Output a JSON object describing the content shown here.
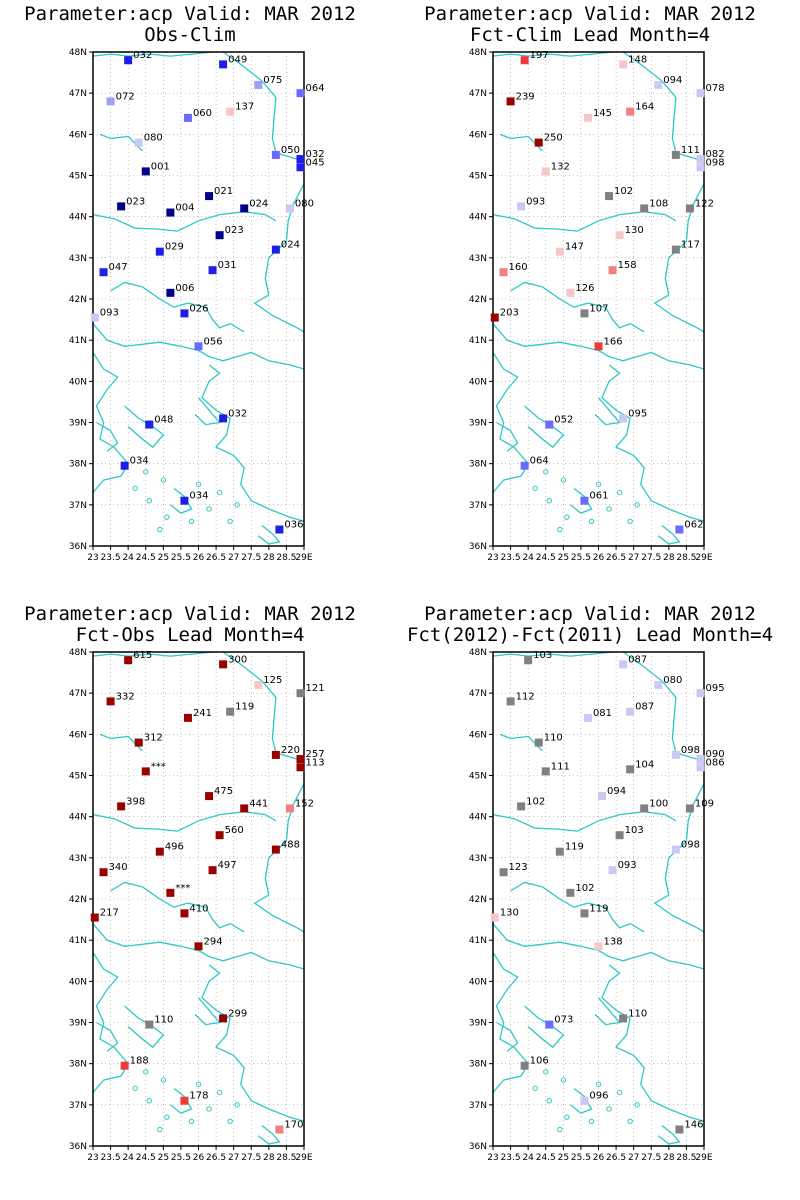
{
  "lon_ticks": [
    "23",
    "23.5",
    "24",
    "24.5",
    "25",
    "25.5",
    "26",
    "26.5",
    "27",
    "27.5",
    "28",
    "28.5",
    "29E"
  ],
  "lat_ticks": [
    "36N",
    "37N",
    "38N",
    "39N",
    "40N",
    "41N",
    "42N",
    "43N",
    "44N",
    "45N",
    "46N",
    "47N",
    "48N"
  ],
  "colors": {
    "coast": "#2fc7c7",
    "grid": "#9a9a9a",
    "neutral": "#808080",
    "blue_dark": "#00008c",
    "blue": "#1e1ee6",
    "blue_mid": "#6a6aff",
    "blue_light": "#9e9ef6",
    "blue_pale": "#c9c9f3",
    "red_dark": "#990000",
    "red": "#ee3b3b",
    "red_light": "#f08080",
    "red_pale": "#f7c6c6"
  },
  "chart_data": [
    {
      "type": "scatter",
      "title": "Parameter:acp Valid: MAR 2012",
      "subtitle": "Obs-Clim",
      "xlim": [
        23,
        29
      ],
      "ylim": [
        36,
        48
      ],
      "points": [
        {
          "lon": 24.0,
          "lat": 47.8,
          "label": "032",
          "color": "blue"
        },
        {
          "lon": 26.7,
          "lat": 47.7,
          "label": "049",
          "color": "blue"
        },
        {
          "lon": 27.7,
          "lat": 47.2,
          "label": "075",
          "color": "blue_light"
        },
        {
          "lon": 28.9,
          "lat": 47.0,
          "label": "064",
          "color": "blue_mid"
        },
        {
          "lon": 23.5,
          "lat": 46.8,
          "label": "072",
          "color": "blue_light"
        },
        {
          "lon": 26.9,
          "lat": 46.55,
          "label": "137",
          "color": "red_pale"
        },
        {
          "lon": 25.7,
          "lat": 46.4,
          "label": "060",
          "color": "blue_mid"
        },
        {
          "lon": 24.3,
          "lat": 45.8,
          "label": "080",
          "color": "blue_pale"
        },
        {
          "lon": 28.2,
          "lat": 45.5,
          "label": "050",
          "color": "blue_mid"
        },
        {
          "lon": 28.9,
          "lat": 45.4,
          "label": "032",
          "color": "blue"
        },
        {
          "lon": 28.9,
          "lat": 45.2,
          "label": "045",
          "color": "blue"
        },
        {
          "lon": 24.5,
          "lat": 45.1,
          "label": "001",
          "color": "blue_dark"
        },
        {
          "lon": 26.3,
          "lat": 44.5,
          "label": "021",
          "color": "blue_dark"
        },
        {
          "lon": 23.8,
          "lat": 44.25,
          "label": "023",
          "color": "blue_dark"
        },
        {
          "lon": 27.3,
          "lat": 44.2,
          "label": "024",
          "color": "blue_dark"
        },
        {
          "lon": 28.6,
          "lat": 44.2,
          "label": "080",
          "color": "blue_pale"
        },
        {
          "lon": 25.2,
          "lat": 44.1,
          "label": "004",
          "color": "blue_dark"
        },
        {
          "lon": 26.6,
          "lat": 43.55,
          "label": "023",
          "color": "blue_dark"
        },
        {
          "lon": 24.9,
          "lat": 43.15,
          "label": "029",
          "color": "blue"
        },
        {
          "lon": 28.2,
          "lat": 43.2,
          "label": "024",
          "color": "blue"
        },
        {
          "lon": 23.3,
          "lat": 42.65,
          "label": "047",
          "color": "blue"
        },
        {
          "lon": 26.4,
          "lat": 42.7,
          "label": "031",
          "color": "blue"
        },
        {
          "lon": 25.2,
          "lat": 42.15,
          "label": "006",
          "color": "blue_dark"
        },
        {
          "lon": 25.6,
          "lat": 41.65,
          "label": "026",
          "color": "blue"
        },
        {
          "lon": 23.05,
          "lat": 41.55,
          "label": "093",
          "color": "blue_pale"
        },
        {
          "lon": 26.0,
          "lat": 40.85,
          "label": "056",
          "color": "blue_mid"
        },
        {
          "lon": 24.6,
          "lat": 38.95,
          "label": "048",
          "color": "blue"
        },
        {
          "lon": 26.7,
          "lat": 39.1,
          "label": "032",
          "color": "blue"
        },
        {
          "lon": 23.9,
          "lat": 37.95,
          "label": "034",
          "color": "blue"
        },
        {
          "lon": 25.6,
          "lat": 37.1,
          "label": "034",
          "color": "blue"
        },
        {
          "lon": 28.3,
          "lat": 36.4,
          "label": "036",
          "color": "blue"
        }
      ]
    },
    {
      "type": "scatter",
      "title": "Parameter:acp Valid: MAR 2012",
      "subtitle": "Fct-Clim Lead Month=4",
      "xlim": [
        23,
        29
      ],
      "ylim": [
        36,
        48
      ],
      "points": [
        {
          "lon": 23.9,
          "lat": 47.8,
          "label": "197",
          "color": "red"
        },
        {
          "lon": 26.7,
          "lat": 47.7,
          "label": "148",
          "color": "red_pale"
        },
        {
          "lon": 27.7,
          "lat": 47.2,
          "label": "094",
          "color": "blue_pale"
        },
        {
          "lon": 28.9,
          "lat": 47.0,
          "label": "078",
          "color": "blue_pale"
        },
        {
          "lon": 23.5,
          "lat": 46.8,
          "label": "239",
          "color": "red_dark"
        },
        {
          "lon": 26.9,
          "lat": 46.55,
          "label": "164",
          "color": "red_light"
        },
        {
          "lon": 25.7,
          "lat": 46.4,
          "label": "145",
          "color": "red_pale"
        },
        {
          "lon": 24.3,
          "lat": 45.8,
          "label": "250",
          "color": "red_dark"
        },
        {
          "lon": 28.2,
          "lat": 45.5,
          "label": "111",
          "color": "neutral"
        },
        {
          "lon": 28.9,
          "lat": 45.4,
          "label": "082",
          "color": "blue_pale"
        },
        {
          "lon": 28.9,
          "lat": 45.2,
          "label": "098",
          "color": "blue_pale"
        },
        {
          "lon": 24.5,
          "lat": 45.1,
          "label": "132",
          "color": "red_pale"
        },
        {
          "lon": 26.3,
          "lat": 44.5,
          "label": "102",
          "color": "neutral"
        },
        {
          "lon": 23.8,
          "lat": 44.25,
          "label": "093",
          "color": "blue_pale"
        },
        {
          "lon": 27.3,
          "lat": 44.2,
          "label": "108",
          "color": "neutral"
        },
        {
          "lon": 28.6,
          "lat": 44.2,
          "label": "122",
          "color": "neutral"
        },
        {
          "lon": 26.6,
          "lat": 43.55,
          "label": "130",
          "color": "red_pale"
        },
        {
          "lon": 24.9,
          "lat": 43.15,
          "label": "147",
          "color": "red_pale"
        },
        {
          "lon": 28.2,
          "lat": 43.2,
          "label": "117",
          "color": "neutral"
        },
        {
          "lon": 23.3,
          "lat": 42.65,
          "label": "160",
          "color": "red_light"
        },
        {
          "lon": 26.4,
          "lat": 42.7,
          "label": "158",
          "color": "red_light"
        },
        {
          "lon": 25.2,
          "lat": 42.15,
          "label": "126",
          "color": "red_pale"
        },
        {
          "lon": 25.6,
          "lat": 41.65,
          "label": "107",
          "color": "neutral"
        },
        {
          "lon": 23.05,
          "lat": 41.55,
          "label": "203",
          "color": "red_dark"
        },
        {
          "lon": 26.0,
          "lat": 40.85,
          "label": "166",
          "color": "red"
        },
        {
          "lon": 24.6,
          "lat": 38.95,
          "label": "052",
          "color": "blue_mid"
        },
        {
          "lon": 26.7,
          "lat": 39.1,
          "label": "095",
          "color": "blue_pale"
        },
        {
          "lon": 23.9,
          "lat": 37.95,
          "label": "064",
          "color": "blue_mid"
        },
        {
          "lon": 25.6,
          "lat": 37.1,
          "label": "061",
          "color": "blue_mid"
        },
        {
          "lon": 28.3,
          "lat": 36.4,
          "label": "062",
          "color": "blue_mid"
        }
      ]
    },
    {
      "type": "scatter",
      "title": "Parameter:acp Valid: MAR 2012",
      "subtitle": "Fct-Obs Lead Month=4",
      "xlim": [
        23,
        29
      ],
      "ylim": [
        36,
        48
      ],
      "points": [
        {
          "lon": 24.0,
          "lat": 47.8,
          "label": "615",
          "color": "red_dark"
        },
        {
          "lon": 26.7,
          "lat": 47.7,
          "label": "300",
          "color": "red_dark"
        },
        {
          "lon": 27.7,
          "lat": 47.2,
          "label": "125",
          "color": "red_pale"
        },
        {
          "lon": 28.9,
          "lat": 47.0,
          "label": "121",
          "color": "neutral"
        },
        {
          "lon": 23.5,
          "lat": 46.8,
          "label": "332",
          "color": "red_dark"
        },
        {
          "lon": 26.9,
          "lat": 46.55,
          "label": "119",
          "color": "neutral"
        },
        {
          "lon": 25.7,
          "lat": 46.4,
          "label": "241",
          "color": "red_dark"
        },
        {
          "lon": 24.3,
          "lat": 45.8,
          "label": "312",
          "color": "red_dark"
        },
        {
          "lon": 28.2,
          "lat": 45.5,
          "label": "220",
          "color": "red_dark"
        },
        {
          "lon": 28.9,
          "lat": 45.4,
          "label": "257",
          "color": "red_dark"
        },
        {
          "lon": 28.9,
          "lat": 45.2,
          "label": "113",
          "color": "red_dark"
        },
        {
          "lon": 24.5,
          "lat": 45.1,
          "label": "***",
          "color": "red_dark"
        },
        {
          "lon": 26.3,
          "lat": 44.5,
          "label": "475",
          "color": "red_dark"
        },
        {
          "lon": 23.8,
          "lat": 44.25,
          "label": "398",
          "color": "red_dark"
        },
        {
          "lon": 27.3,
          "lat": 44.2,
          "label": "441",
          "color": "red_dark"
        },
        {
          "lon": 28.6,
          "lat": 44.2,
          "label": "152",
          "color": "red_light"
        },
        {
          "lon": 26.6,
          "lat": 43.55,
          "label": "560",
          "color": "red_dark"
        },
        {
          "lon": 24.9,
          "lat": 43.15,
          "label": "496",
          "color": "red_dark"
        },
        {
          "lon": 28.2,
          "lat": 43.2,
          "label": "488",
          "color": "red_dark"
        },
        {
          "lon": 23.3,
          "lat": 42.65,
          "label": "340",
          "color": "red_dark"
        },
        {
          "lon": 26.4,
          "lat": 42.7,
          "label": "497",
          "color": "red_dark"
        },
        {
          "lon": 25.2,
          "lat": 42.15,
          "label": "***",
          "color": "red_dark"
        },
        {
          "lon": 25.6,
          "lat": 41.65,
          "label": "410",
          "color": "red_dark"
        },
        {
          "lon": 23.05,
          "lat": 41.55,
          "label": "217",
          "color": "red_dark"
        },
        {
          "lon": 26.0,
          "lat": 40.85,
          "label": "294",
          "color": "red_dark"
        },
        {
          "lon": 24.6,
          "lat": 38.95,
          "label": "110",
          "color": "neutral"
        },
        {
          "lon": 26.7,
          "lat": 39.1,
          "label": "299",
          "color": "red_dark"
        },
        {
          "lon": 23.9,
          "lat": 37.95,
          "label": "188",
          "color": "red"
        },
        {
          "lon": 25.6,
          "lat": 37.1,
          "label": "178",
          "color": "red"
        },
        {
          "lon": 28.3,
          "lat": 36.4,
          "label": "170",
          "color": "red_light"
        }
      ]
    },
    {
      "type": "scatter",
      "title": "Parameter:acp Valid: MAR 2012",
      "subtitle": "Fct(2012)-Fct(2011) Lead Month=4",
      "xlim": [
        23,
        29
      ],
      "ylim": [
        36,
        48
      ],
      "points": [
        {
          "lon": 24.0,
          "lat": 47.8,
          "label": "103",
          "color": "neutral"
        },
        {
          "lon": 26.7,
          "lat": 47.7,
          "label": "087",
          "color": "blue_pale"
        },
        {
          "lon": 27.7,
          "lat": 47.2,
          "label": "080",
          "color": "blue_pale"
        },
        {
          "lon": 28.9,
          "lat": 47.0,
          "label": "095",
          "color": "blue_pale"
        },
        {
          "lon": 23.5,
          "lat": 46.8,
          "label": "112",
          "color": "neutral"
        },
        {
          "lon": 26.9,
          "lat": 46.55,
          "label": "087",
          "color": "blue_pale"
        },
        {
          "lon": 25.7,
          "lat": 46.4,
          "label": "081",
          "color": "blue_pale"
        },
        {
          "lon": 24.3,
          "lat": 45.8,
          "label": "110",
          "color": "neutral"
        },
        {
          "lon": 28.2,
          "lat": 45.5,
          "label": "098",
          "color": "blue_pale"
        },
        {
          "lon": 28.9,
          "lat": 45.4,
          "label": "090",
          "color": "blue_pale"
        },
        {
          "lon": 28.9,
          "lat": 45.2,
          "label": "086",
          "color": "blue_pale"
        },
        {
          "lon": 24.5,
          "lat": 45.1,
          "label": "111",
          "color": "neutral"
        },
        {
          "lon": 26.9,
          "lat": 45.15,
          "label": "104",
          "color": "neutral"
        },
        {
          "lon": 26.1,
          "lat": 44.5,
          "label": "094",
          "color": "blue_pale"
        },
        {
          "lon": 23.8,
          "lat": 44.25,
          "label": "102",
          "color": "neutral"
        },
        {
          "lon": 27.3,
          "lat": 44.2,
          "label": "100",
          "color": "neutral"
        },
        {
          "lon": 28.6,
          "lat": 44.2,
          "label": "109",
          "color": "neutral"
        },
        {
          "lon": 26.6,
          "lat": 43.55,
          "label": "103",
          "color": "neutral"
        },
        {
          "lon": 24.9,
          "lat": 43.15,
          "label": "119",
          "color": "neutral"
        },
        {
          "lon": 28.2,
          "lat": 43.2,
          "label": "098",
          "color": "blue_pale"
        },
        {
          "lon": 23.3,
          "lat": 42.65,
          "label": "123",
          "color": "neutral"
        },
        {
          "lon": 26.4,
          "lat": 42.7,
          "label": "093",
          "color": "blue_pale"
        },
        {
          "lon": 25.2,
          "lat": 42.15,
          "label": "102",
          "color": "neutral"
        },
        {
          "lon": 25.6,
          "lat": 41.65,
          "label": "119",
          "color": "neutral"
        },
        {
          "lon": 23.05,
          "lat": 41.55,
          "label": "130",
          "color": "red_pale"
        },
        {
          "lon": 26.0,
          "lat": 40.85,
          "label": "138",
          "color": "red_pale"
        },
        {
          "lon": 24.6,
          "lat": 38.95,
          "label": "073",
          "color": "blue_mid"
        },
        {
          "lon": 26.7,
          "lat": 39.1,
          "label": "110",
          "color": "neutral"
        },
        {
          "lon": 23.9,
          "lat": 37.95,
          "label": "106",
          "color": "neutral"
        },
        {
          "lon": 25.6,
          "lat": 37.1,
          "label": "096",
          "color": "blue_pale"
        },
        {
          "lon": 28.3,
          "lat": 36.4,
          "label": "146",
          "color": "neutral"
        }
      ]
    }
  ]
}
